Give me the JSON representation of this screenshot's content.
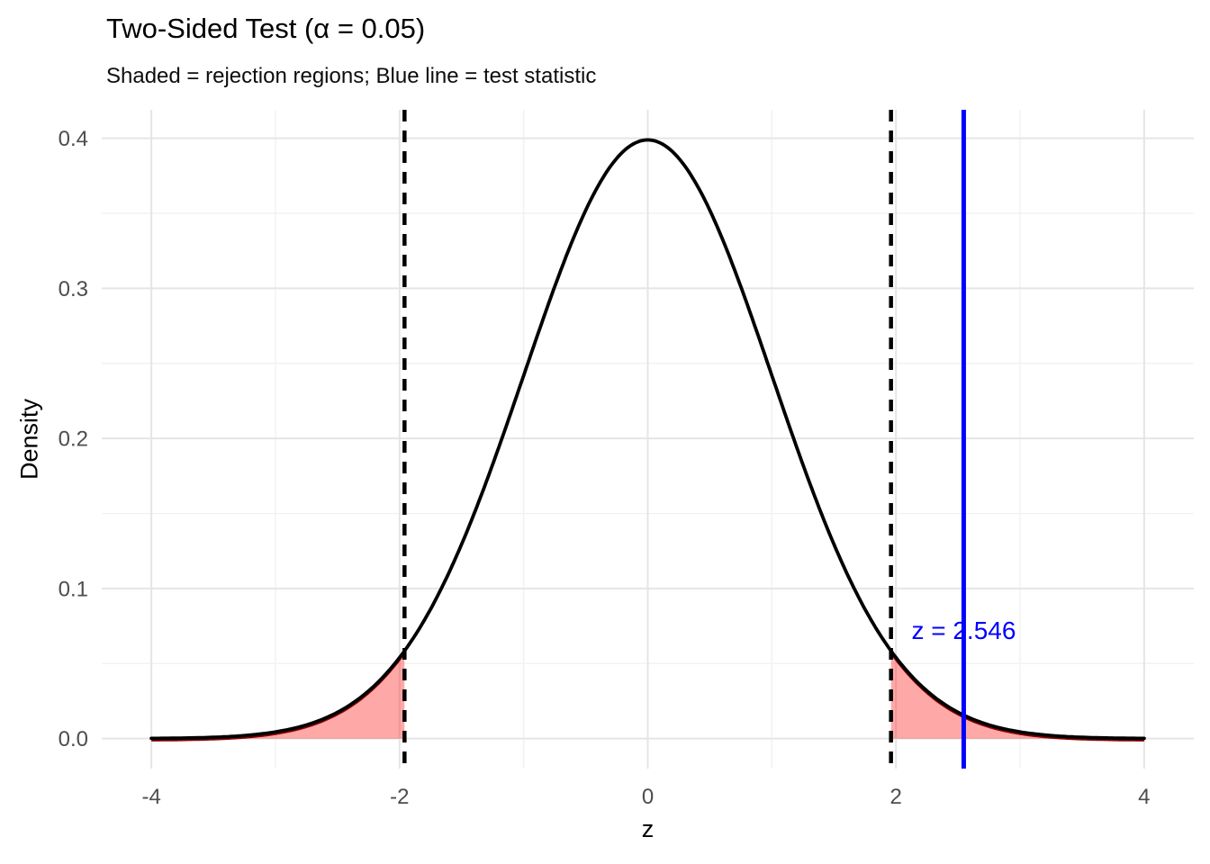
{
  "chart_data": {
    "type": "area",
    "title": "Two-Sided Test (α = 0.05)",
    "subtitle": "Shaded = rejection regions; Blue line = test statistic",
    "xlabel": "z",
    "ylabel": "Density",
    "xlim": [
      -4,
      4
    ],
    "ylim": [
      0,
      0.4
    ],
    "grid": "on",
    "legend": "none",
    "curve": {
      "distribution": "normal",
      "mean": 0,
      "sd": 1,
      "x_range": [
        -4,
        4
      ],
      "peak_density": 0.3989,
      "density_at_critical": 0.0584
    },
    "alpha": 0.05,
    "critical_values": [
      -1.96,
      1.96
    ],
    "rejection_regions": [
      [
        -4,
        -1.96
      ],
      [
        1.96,
        4
      ]
    ],
    "test_statistic": 2.546,
    "annotation": {
      "text": "z = 2.546",
      "x": 2.546,
      "y": 0.072
    },
    "x_ticks": [
      {
        "v": -4,
        "label": "-4"
      },
      {
        "v": -2,
        "label": "-2"
      },
      {
        "v": 0,
        "label": "0"
      },
      {
        "v": 2,
        "label": "2"
      },
      {
        "v": 4,
        "label": "4"
      }
    ],
    "y_ticks": [
      {
        "v": 0.0,
        "label": "0.0"
      },
      {
        "v": 0.1,
        "label": "0.1"
      },
      {
        "v": 0.2,
        "label": "0.2"
      },
      {
        "v": 0.3,
        "label": "0.3"
      },
      {
        "v": 0.4,
        "label": "0.4"
      }
    ],
    "x_minor": [
      -3,
      -1,
      1,
      3
    ],
    "y_minor": [
      0.05,
      0.15,
      0.25,
      0.35
    ],
    "colors": {
      "curve": "#000000",
      "rejection_fill": "rgba(255,0,0,0.34)",
      "rejection_edge": "#8B0000",
      "critical_line": "#000000",
      "test_stat_line": "#0000FF",
      "annotation_text": "#0000FF",
      "grid_major": "#E5E5E5",
      "grid_minor": "#F1F1F1",
      "tick_label": "#4D4D4D"
    }
  }
}
